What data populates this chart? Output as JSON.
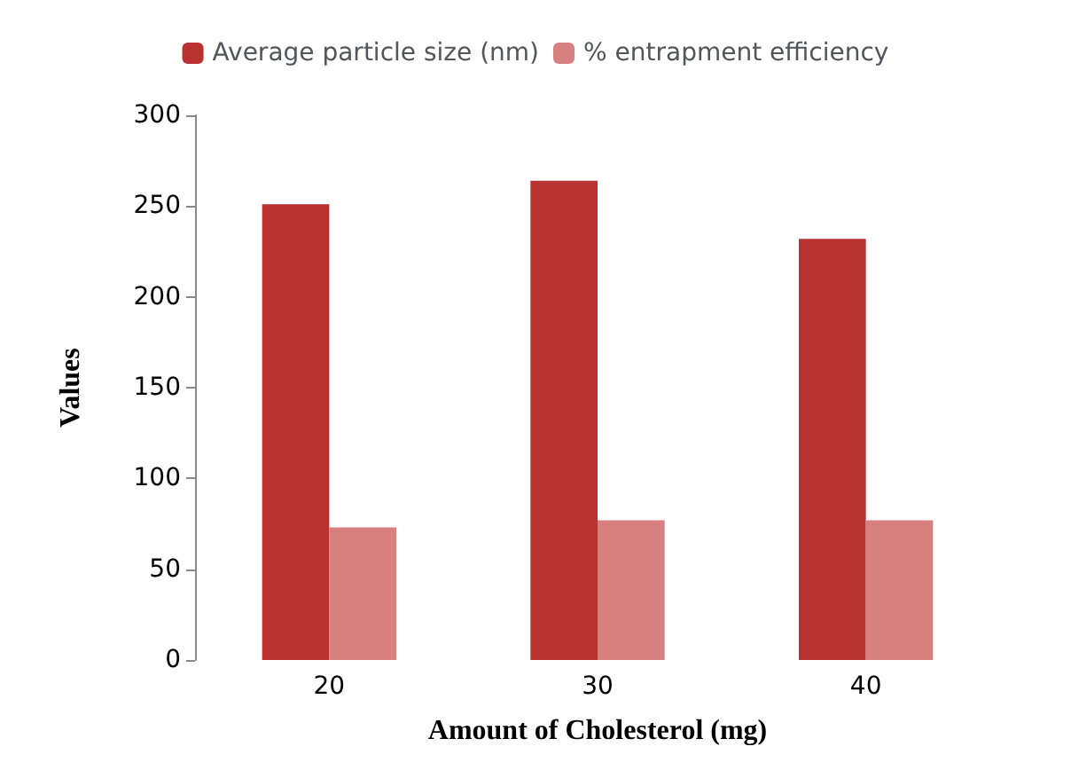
{
  "chart_data": {
    "type": "bar",
    "xlabel": "Amount of Cholesterol (mg)",
    "ylabel": "Values",
    "categories": [
      "20",
      "30",
      "40"
    ],
    "series": [
      {
        "name": "Average particle size (nm)",
        "color": "#b83232",
        "values": [
          251,
          264,
          232
        ]
      },
      {
        "name": "% entrapment efficiency",
        "color": "#d88080",
        "values": [
          73,
          77,
          77
        ]
      }
    ],
    "ylim": [
      0,
      300
    ],
    "yticks": [
      0,
      50,
      100,
      150,
      200,
      250,
      300
    ],
    "grid": false,
    "legend": "top"
  }
}
